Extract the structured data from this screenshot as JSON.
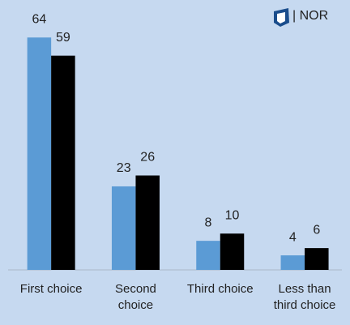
{
  "chart_data": {
    "type": "bar",
    "header_text": "| NOR",
    "categories": [
      "First choice",
      "Second choice",
      "Third choice",
      "Less than third choice"
    ],
    "series": [
      {
        "color": "#5b9bd5",
        "values": [
          64,
          23,
          8,
          4
        ]
      },
      {
        "color": "#000000",
        "values": [
          59,
          26,
          10,
          6
        ]
      }
    ],
    "ylim": [
      0,
      70
    ]
  }
}
